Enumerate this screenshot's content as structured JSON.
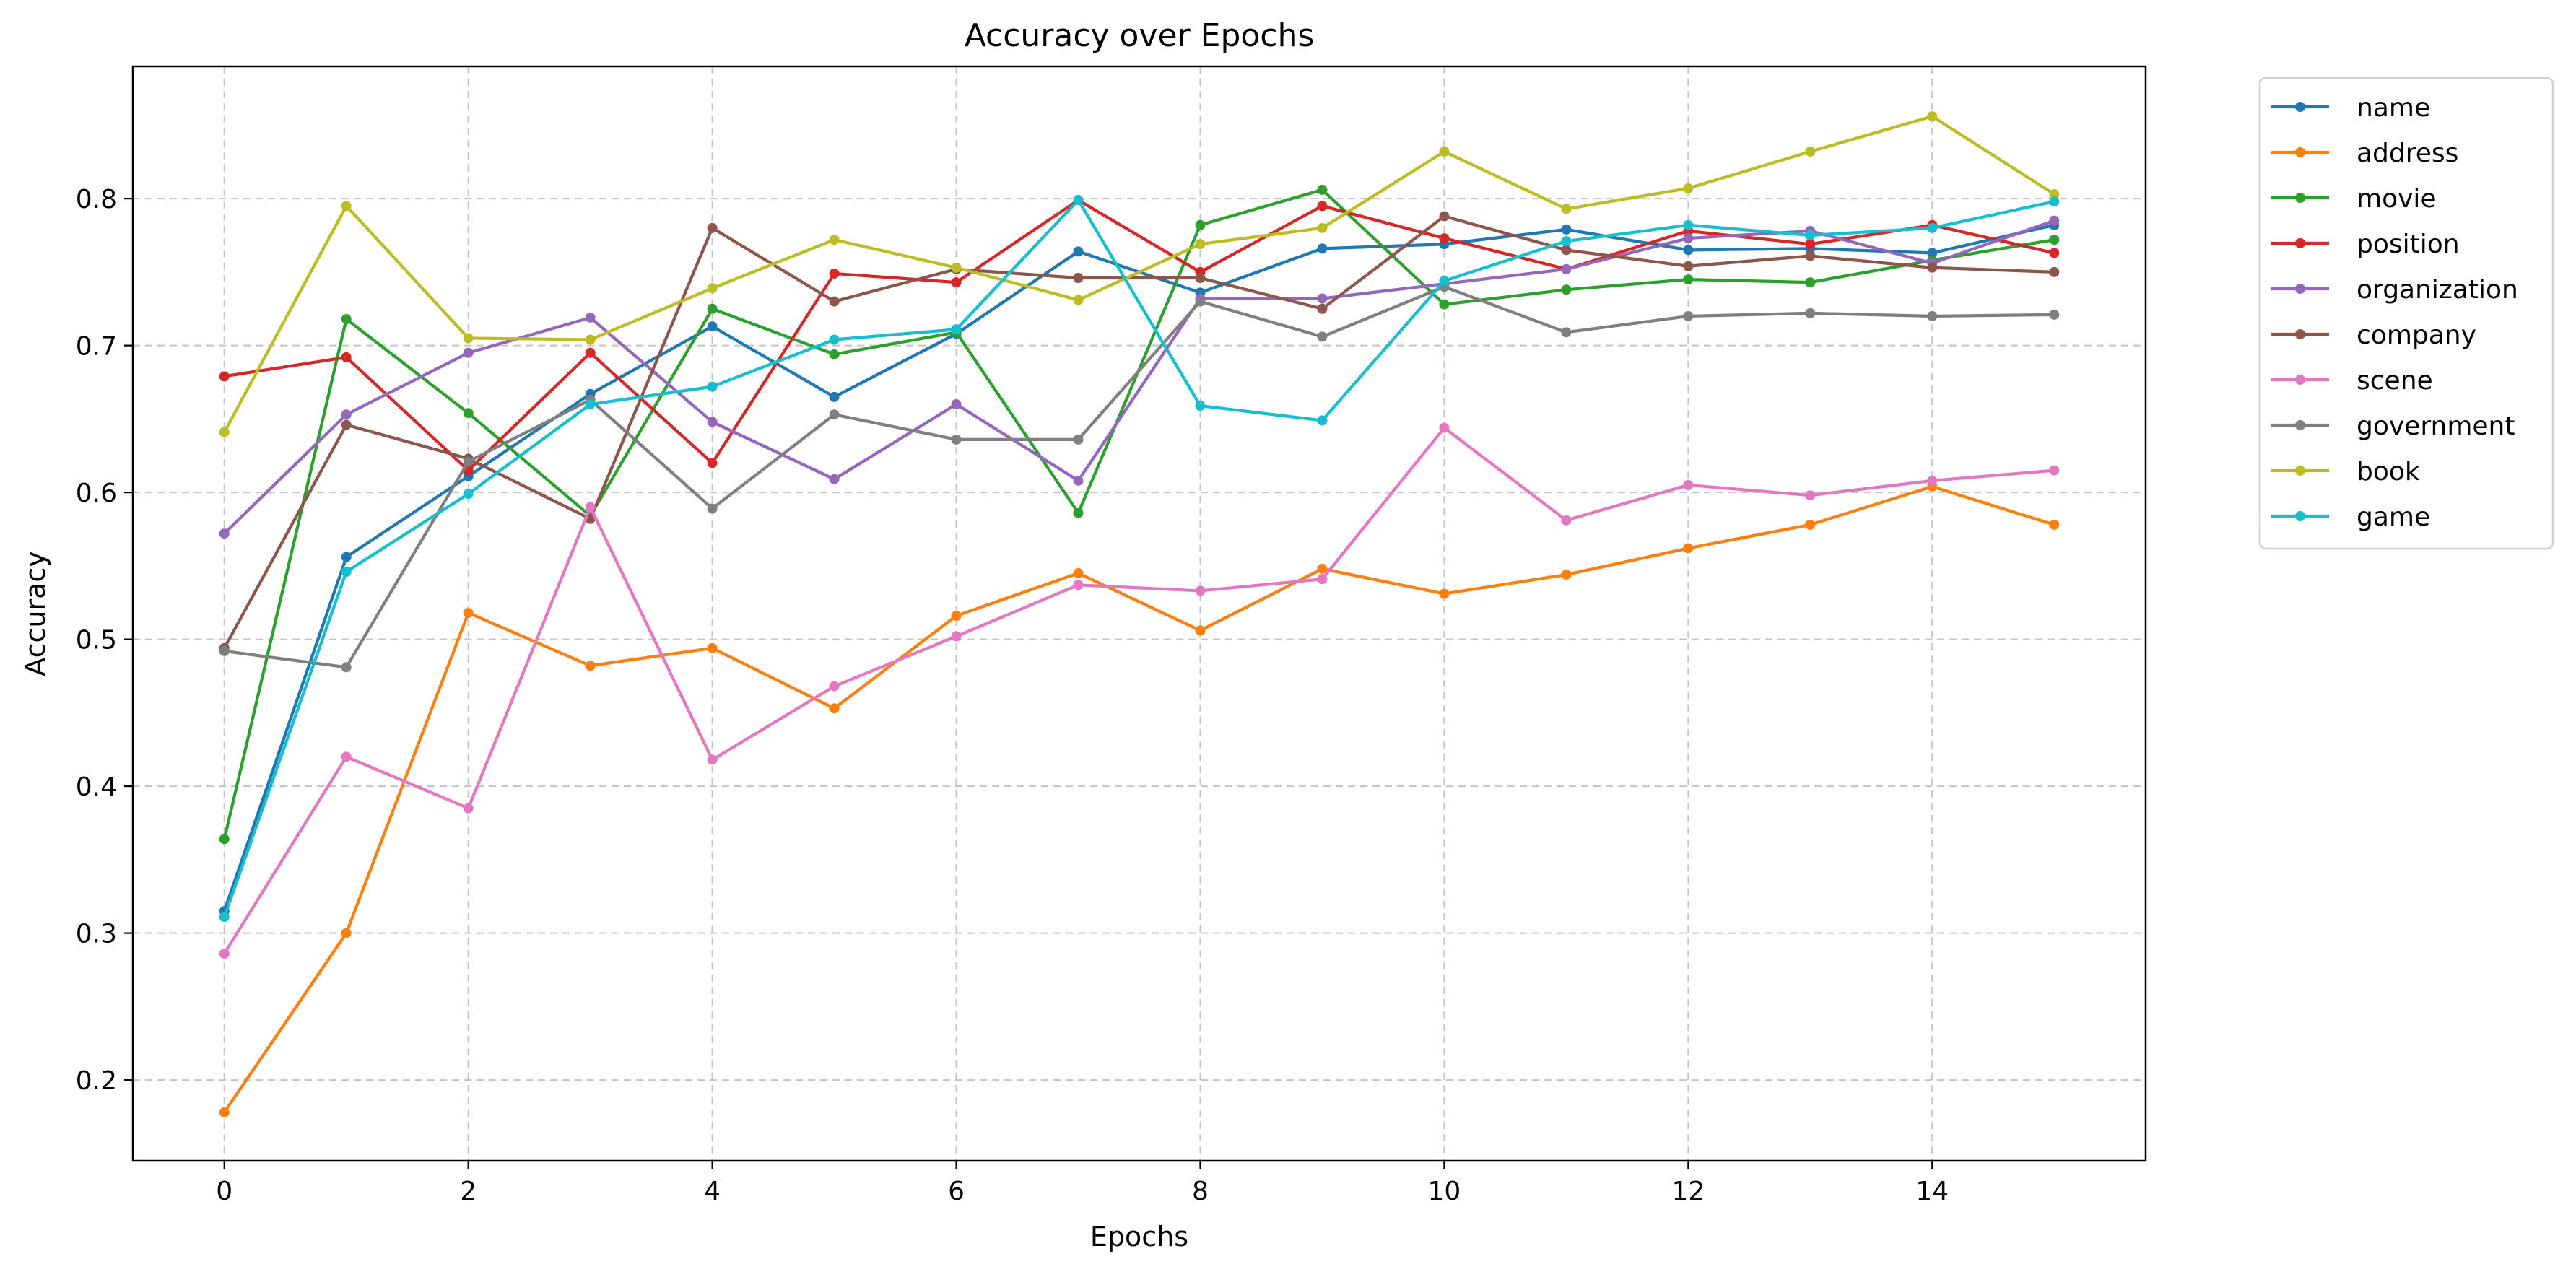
{
  "chart_data": {
    "type": "line",
    "title": "Accuracy over Epochs",
    "xlabel": "Epochs",
    "ylabel": "Accuracy",
    "xlim": [
      -0.75,
      15.75
    ],
    "ylim": [
      0.145,
      0.89
    ],
    "xticks": [
      0,
      2,
      4,
      6,
      8,
      10,
      12,
      14
    ],
    "yticks": [
      0.2,
      0.3,
      0.4,
      0.5,
      0.6,
      0.7,
      0.8
    ],
    "xtick_labels": [
      "0",
      "2",
      "4",
      "6",
      "8",
      "10",
      "12",
      "14"
    ],
    "ytick_labels": [
      "0.2",
      "0.3",
      "0.4",
      "0.5",
      "0.6",
      "0.7",
      "0.8"
    ],
    "grid": true,
    "legend_position": "outside-right-top",
    "x": [
      0,
      1,
      2,
      3,
      4,
      5,
      6,
      7,
      8,
      9,
      10,
      11,
      12,
      13,
      14,
      15
    ],
    "series": [
      {
        "name": "name",
        "color": "#1f77b4",
        "values": [
          0.315,
          0.556,
          0.611,
          0.667,
          0.713,
          0.665,
          0.708,
          0.764,
          0.736,
          0.766,
          0.769,
          0.779,
          0.765,
          0.766,
          0.763,
          0.782
        ]
      },
      {
        "name": "address",
        "color": "#ff7f0e",
        "values": [
          0.178,
          0.3,
          0.518,
          0.482,
          0.494,
          0.453,
          0.516,
          0.545,
          0.506,
          0.548,
          0.531,
          0.544,
          0.562,
          0.578,
          0.604,
          0.578
        ]
      },
      {
        "name": "movie",
        "color": "#2ca02c",
        "values": [
          0.364,
          0.718,
          0.654,
          0.584,
          0.725,
          0.694,
          0.709,
          0.586,
          0.782,
          0.806,
          0.728,
          0.738,
          0.745,
          0.743,
          0.758,
          0.772
        ]
      },
      {
        "name": "position",
        "color": "#d62728",
        "values": [
          0.679,
          0.692,
          0.615,
          0.695,
          0.62,
          0.749,
          0.743,
          0.799,
          0.75,
          0.795,
          0.773,
          0.752,
          0.778,
          0.769,
          0.782,
          0.763
        ]
      },
      {
        "name": "organization",
        "color": "#9467bd",
        "values": [
          0.572,
          0.653,
          0.695,
          0.719,
          0.648,
          0.609,
          0.66,
          0.608,
          0.732,
          0.732,
          0.742,
          0.752,
          0.773,
          0.778,
          0.756,
          0.785
        ]
      },
      {
        "name": "company",
        "color": "#8c564b",
        "values": [
          0.494,
          0.646,
          0.623,
          0.582,
          0.78,
          0.73,
          0.752,
          0.746,
          0.746,
          0.725,
          0.788,
          0.765,
          0.754,
          0.761,
          0.753,
          0.75
        ]
      },
      {
        "name": "scene",
        "color": "#e377c2",
        "values": [
          0.286,
          0.42,
          0.385,
          0.59,
          0.418,
          0.468,
          0.502,
          0.537,
          0.533,
          0.541,
          0.644,
          0.581,
          0.605,
          0.598,
          0.608,
          0.615
        ]
      },
      {
        "name": "government",
        "color": "#7f7f7f",
        "values": [
          0.492,
          0.481,
          0.621,
          0.663,
          0.589,
          0.653,
          0.636,
          0.636,
          0.73,
          0.706,
          0.74,
          0.709,
          0.72,
          0.722,
          0.72,
          0.721
        ]
      },
      {
        "name": "book",
        "color": "#bcbd22",
        "values": [
          0.641,
          0.795,
          0.705,
          0.704,
          0.739,
          0.772,
          0.753,
          0.731,
          0.769,
          0.78,
          0.832,
          0.793,
          0.807,
          0.832,
          0.856,
          0.803
        ]
      },
      {
        "name": "game",
        "color": "#17becf",
        "values": [
          0.311,
          0.546,
          0.599,
          0.66,
          0.672,
          0.704,
          0.711,
          0.799,
          0.659,
          0.649,
          0.744,
          0.771,
          0.782,
          0.775,
          0.78,
          0.798
        ]
      }
    ]
  }
}
